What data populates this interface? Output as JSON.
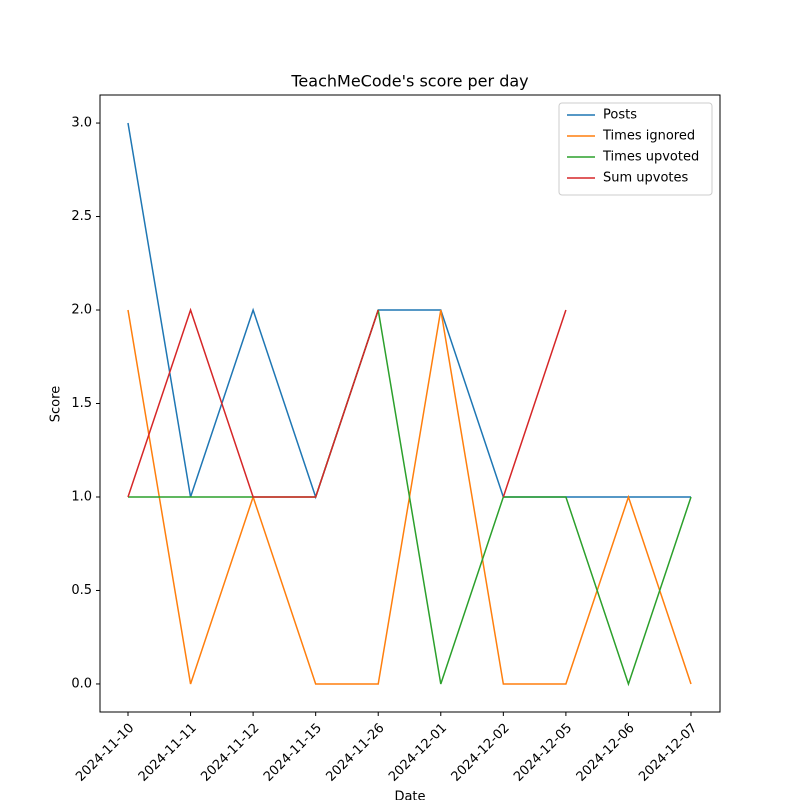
{
  "chart_data": {
    "type": "line",
    "title": "TeachMeCode's score per day",
    "xlabel": "Date",
    "ylabel": "Score",
    "categories": [
      "2024-11-10",
      "2024-11-11",
      "2024-11-12",
      "2024-11-15",
      "2024-11-26",
      "2024-12-01",
      "2024-12-02",
      "2024-12-05",
      "2024-12-06",
      "2024-12-07"
    ],
    "series": [
      {
        "name": "Posts",
        "color": "#1f77b4",
        "values": [
          3,
          1,
          2,
          1,
          2,
          2,
          1,
          1,
          1,
          1
        ]
      },
      {
        "name": "Times ignored",
        "color": "#ff7f0e",
        "values": [
          2,
          0,
          1,
          0,
          0,
          2,
          0,
          0,
          1,
          0
        ]
      },
      {
        "name": "Times upvoted",
        "color": "#2ca02c",
        "values": [
          1,
          1,
          1,
          1,
          2,
          0,
          1,
          1,
          0,
          1
        ]
      },
      {
        "name": "Sum upvotes",
        "color": "#d62728",
        "values": [
          1,
          2,
          1,
          1,
          2,
          null,
          1,
          2,
          null,
          null
        ]
      }
    ],
    "ylim": [
      -0.15,
      3.15
    ],
    "yticks": [
      {
        "value": 0,
        "label": "0.0"
      },
      {
        "value": 0.5,
        "label": "0.5"
      },
      {
        "value": 1,
        "label": "1.0"
      },
      {
        "value": 1.5,
        "label": "1.5"
      },
      {
        "value": 2,
        "label": "2.0"
      },
      {
        "value": 2.5,
        "label": "2.5"
      },
      {
        "value": 3,
        "label": "3.0"
      }
    ],
    "legend": "upper right"
  }
}
